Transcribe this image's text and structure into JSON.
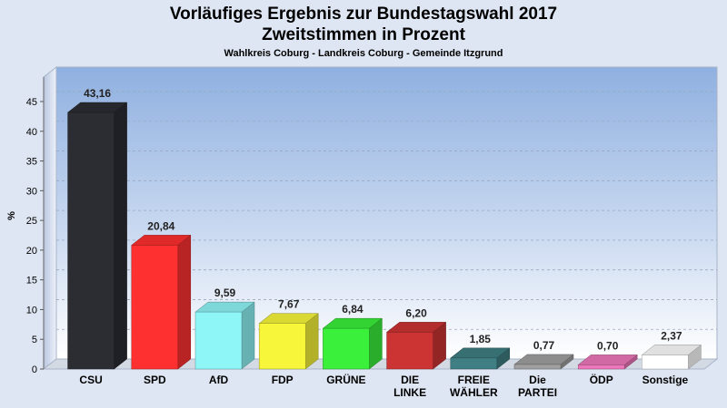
{
  "chart_data": {
    "type": "bar",
    "title": "Vorläufiges Ergebnis zur Bundestagswahl 2017",
    "subtitle": "Zweitstimmen in Prozent",
    "caption": "Wahlkreis Coburg - Landkreis Coburg - Gemeinde Itzgrund",
    "ylabel": "%",
    "ylim": [
      0,
      45
    ],
    "yticks": [
      0,
      5,
      10,
      15,
      20,
      25,
      30,
      35,
      40,
      45
    ],
    "grid": true,
    "categories": [
      [
        "CSU"
      ],
      [
        "SPD"
      ],
      [
        "AfD"
      ],
      [
        "FDP"
      ],
      [
        "GRÜNE"
      ],
      [
        "DIE",
        "LINKE"
      ],
      [
        "FREIE",
        "WÄHLER"
      ],
      [
        "Die",
        "PARTEI"
      ],
      [
        "ÖDP"
      ],
      [
        "Sonstige"
      ]
    ],
    "values": [
      43.16,
      20.84,
      9.59,
      7.67,
      6.84,
      6.2,
      1.85,
      0.77,
      0.7,
      2.37
    ],
    "value_labels": [
      "43,16",
      "20,84",
      "9,59",
      "7,67",
      "6,84",
      "6,20",
      "1,85",
      "0,77",
      "0,70",
      "2,37"
    ],
    "colors": [
      "#2b2d33",
      "#ff3030",
      "#8ff6f8",
      "#f8f63a",
      "#3bf03b",
      "#cc3333",
      "#3f7f83",
      "#a0a0a0",
      "#ee77bb",
      "#ffffff"
    ]
  }
}
